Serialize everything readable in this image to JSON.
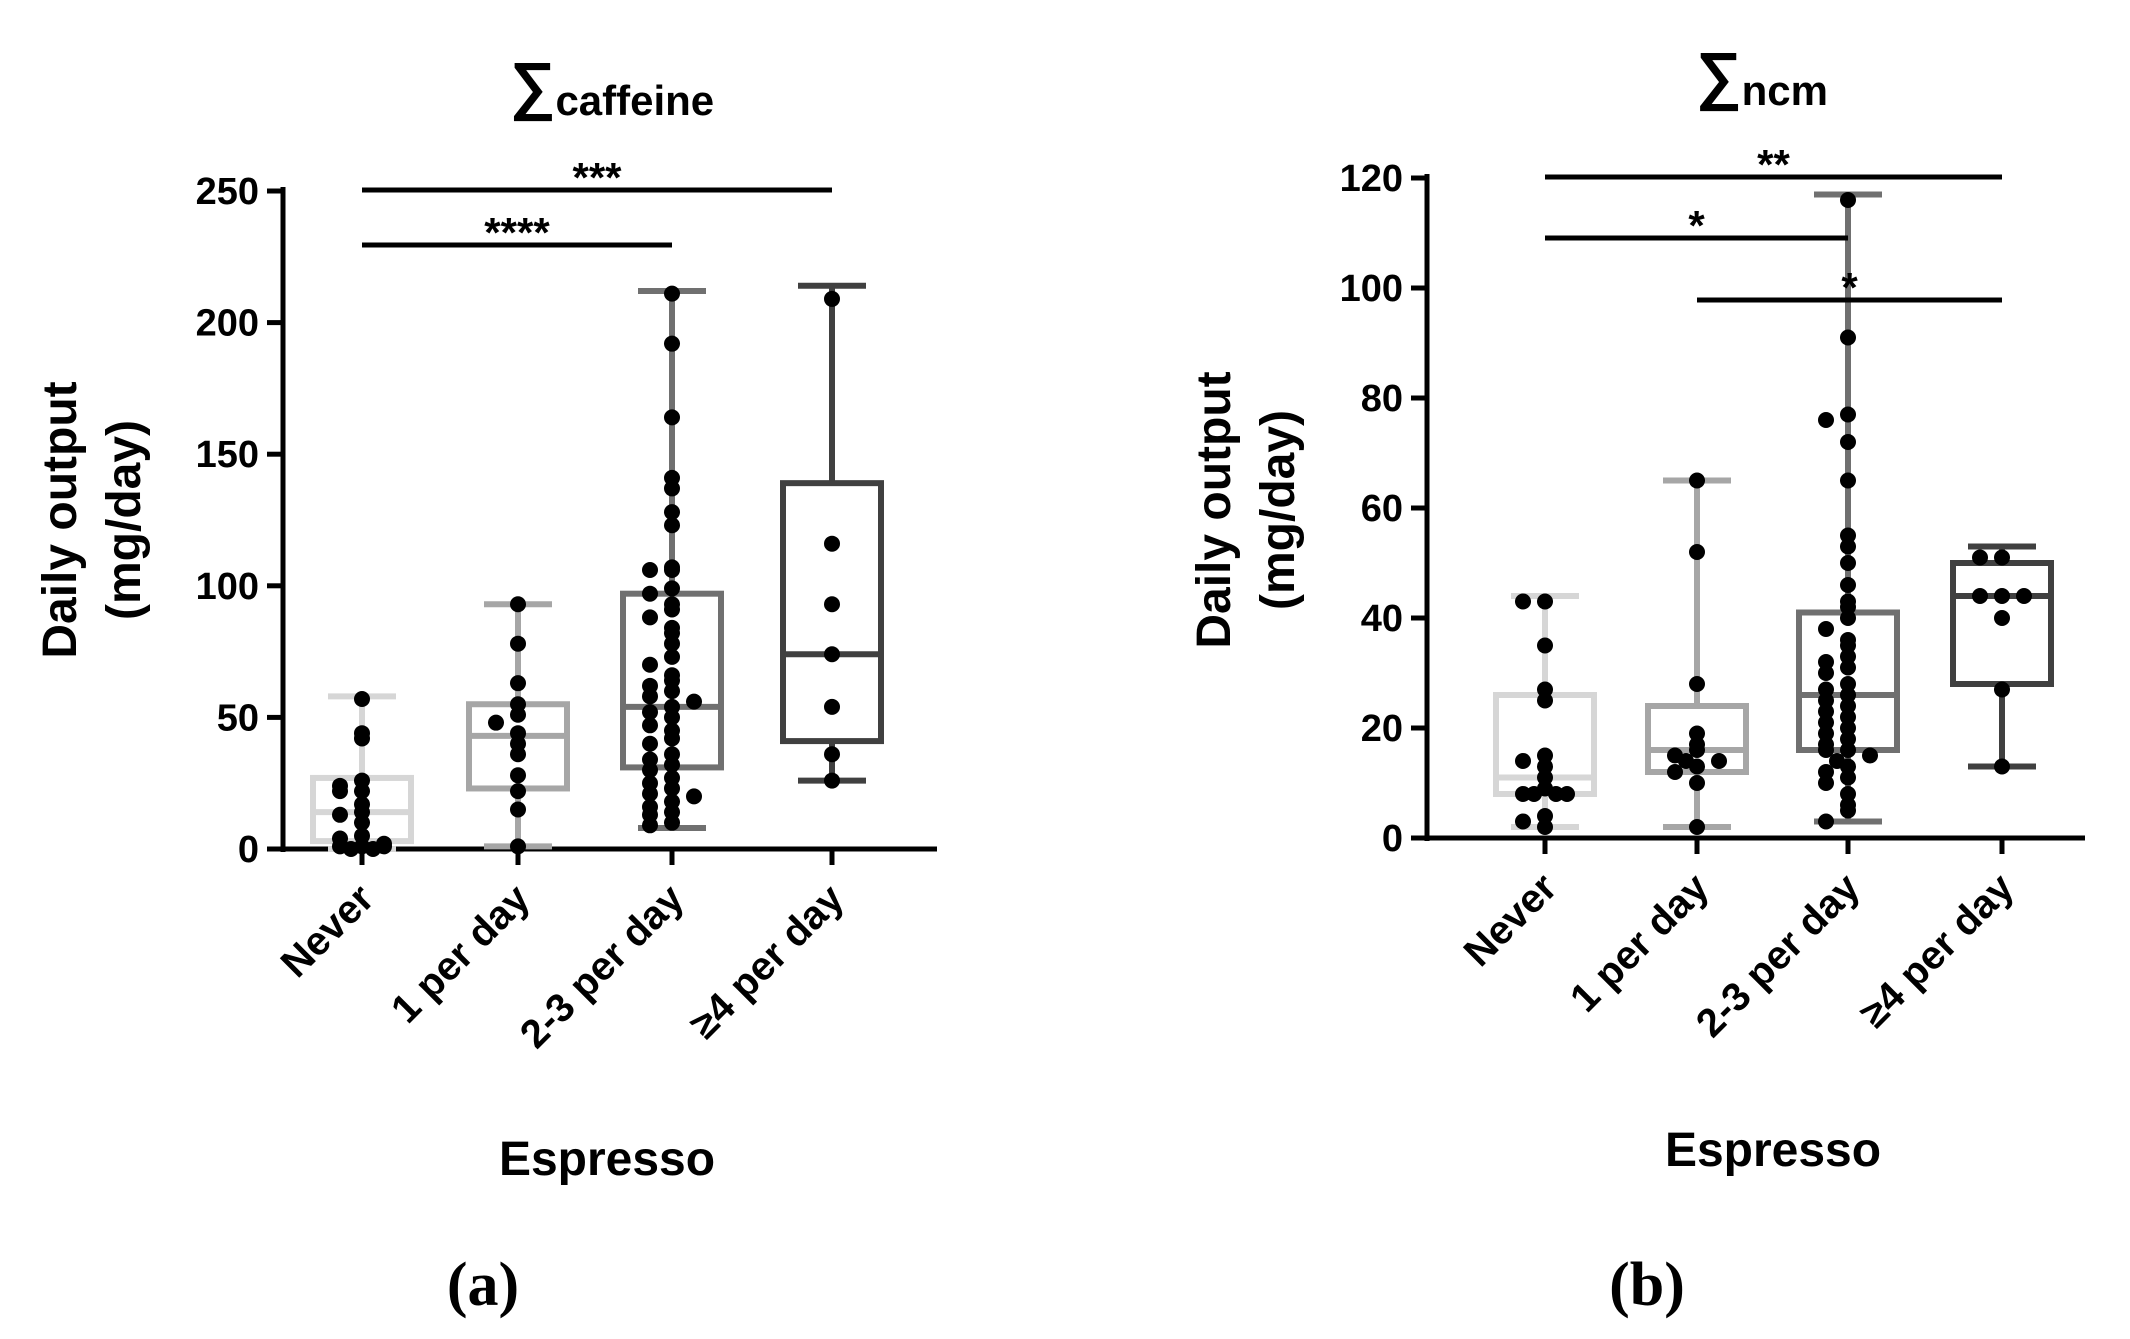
{
  "figure": {
    "panel_labels": [
      "(a)",
      "(b)"
    ]
  },
  "chart_data": [
    {
      "type": "box",
      "panel": "(a)",
      "title": "∑caffeine",
      "title_symbol": "∑",
      "title_sub": "caffeine",
      "xlabel": "Espresso",
      "ylabel_line1": "Daily output",
      "ylabel_line2": "(mg/day)",
      "ylim": [
        0,
        250
      ],
      "yticks": [
        0,
        50,
        100,
        150,
        200,
        250
      ],
      "categories": [
        "Never",
        "1 per day",
        "2-3 per day",
        "≥4 per day"
      ],
      "box_colors": [
        "#d6d6d6",
        "#a6a6a6",
        "#707070",
        "#404040"
      ],
      "boxes": [
        {
          "min": 0,
          "q1": 3,
          "median": 14,
          "q3": 27,
          "max": 58
        },
        {
          "min": 1,
          "q1": 23,
          "median": 43,
          "q3": 55,
          "max": 93
        },
        {
          "min": 8,
          "q1": 31,
          "median": 54,
          "q3": 97,
          "max": 212
        },
        {
          "min": 26,
          "q1": 41,
          "median": 74,
          "q3": 139,
          "max": 214
        }
      ],
      "points": [
        [
          57,
          44,
          42,
          26,
          24,
          22,
          22,
          17,
          14,
          13,
          10,
          5,
          4,
          2,
          1,
          1,
          1,
          0,
          0
        ],
        [
          93,
          78,
          63,
          55,
          51,
          48,
          44,
          40,
          36,
          28,
          22,
          15,
          1
        ],
        [
          211,
          192,
          164,
          141,
          137,
          128,
          123,
          107,
          106,
          106,
          99,
          97,
          93,
          91,
          88,
          84,
          82,
          78,
          73,
          70,
          66,
          64,
          62,
          60,
          58,
          56,
          54,
          52,
          50,
          47,
          45,
          42,
          40,
          36,
          34,
          32,
          30,
          27,
          25,
          23,
          21,
          20,
          18,
          16,
          14,
          13,
          10,
          9
        ],
        [
          209,
          116,
          93,
          74,
          54,
          36,
          26
        ]
      ],
      "significance": [
        {
          "from": 0,
          "to": 3,
          "label": "***"
        },
        {
          "from": 0,
          "to": 2,
          "label": "****"
        }
      ]
    },
    {
      "type": "box",
      "panel": "(b)",
      "title": "∑ncm",
      "title_symbol": "∑",
      "title_sub": "ncm",
      "xlabel": "Espresso",
      "ylabel_line1": "Daily output",
      "ylabel_line2": "(mg/day)",
      "ylim": [
        0,
        120
      ],
      "yticks": [
        0,
        20,
        40,
        60,
        80,
        100,
        120
      ],
      "categories": [
        "Never",
        "1 per day",
        "2-3 per day",
        "≥4 per day"
      ],
      "box_colors": [
        "#d6d6d6",
        "#a6a6a6",
        "#707070",
        "#404040"
      ],
      "boxes": [
        {
          "min": 2,
          "q1": 8,
          "median": 11,
          "q3": 26,
          "max": 44
        },
        {
          "min": 2,
          "q1": 12,
          "median": 16,
          "q3": 24,
          "max": 65
        },
        {
          "min": 3,
          "q1": 16,
          "median": 26,
          "q3": 41,
          "max": 117
        },
        {
          "min": 13,
          "q1": 28,
          "median": 44,
          "q3": 50,
          "max": 53
        }
      ],
      "points": [
        [
          43,
          43,
          35,
          27,
          25,
          15,
          14,
          13,
          11,
          9,
          8,
          8,
          8,
          8,
          4,
          3,
          2
        ],
        [
          65,
          52,
          28,
          19,
          17,
          16,
          15,
          14,
          14,
          13,
          12,
          10,
          2
        ],
        [
          116,
          91,
          77,
          76,
          72,
          65,
          55,
          53,
          50,
          46,
          43,
          42,
          40,
          38,
          36,
          35,
          33,
          32,
          31,
          30,
          28,
          27,
          26,
          25,
          24,
          23,
          22,
          21,
          20,
          19,
          18,
          17,
          16,
          16,
          15,
          14,
          13,
          12,
          11,
          10,
          8,
          6,
          5,
          3
        ],
        [
          51,
          51,
          44,
          44,
          44,
          40,
          27,
          13
        ]
      ],
      "significance": [
        {
          "from": 0,
          "to": 3,
          "label": "**"
        },
        {
          "from": 0,
          "to": 2,
          "label": "*"
        },
        {
          "from": 1,
          "to": 3,
          "label": "*"
        }
      ]
    }
  ]
}
